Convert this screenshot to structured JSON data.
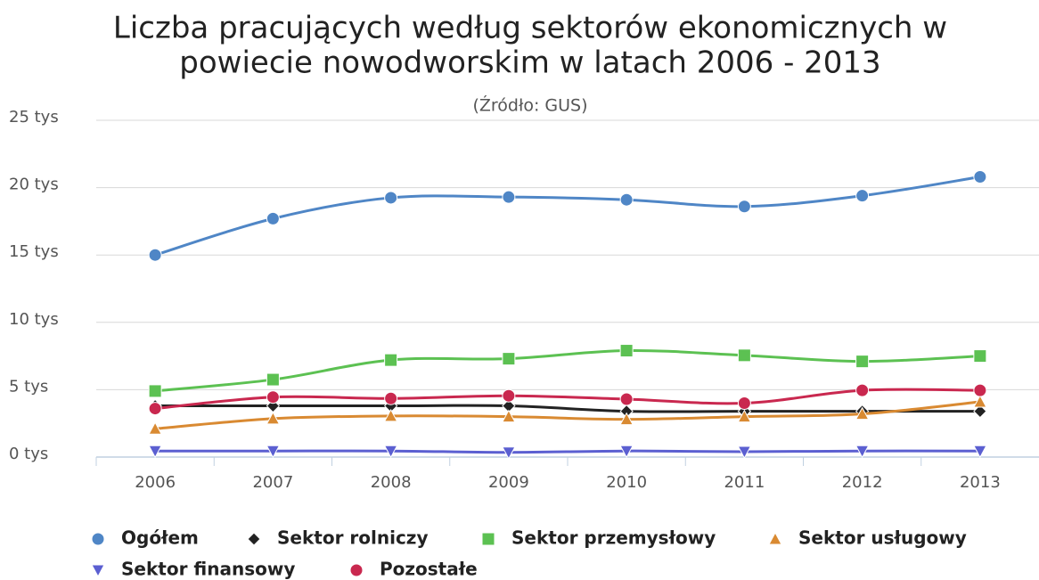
{
  "chart_data": {
    "type": "line",
    "title": [
      "Liczba pracujących według sektorów ekonomicznych w",
      "powiecie nowodworskim w latach 2006 - 2013"
    ],
    "subtitle": "(Źródło: GUS)",
    "categories": [
      "2006",
      "2007",
      "2008",
      "2009",
      "2010",
      "2011",
      "2012",
      "2013"
    ],
    "ylim": [
      0,
      25
    ],
    "yticks": [
      {
        "value": 0,
        "label": "0 tys"
      },
      {
        "value": 5,
        "label": "5 tys"
      },
      {
        "value": 10,
        "label": "10 tys"
      },
      {
        "value": 15,
        "label": "15 tys"
      },
      {
        "value": 20,
        "label": "20 tys"
      },
      {
        "value": 25,
        "label": "25 tys"
      }
    ],
    "grid": true,
    "legend": "bottom",
    "series": [
      {
        "name": "Ogółem",
        "color": "#4f86c6",
        "marker": "circle",
        "values": [
          15.0,
          17.7,
          19.25,
          19.3,
          19.1,
          18.6,
          19.4,
          20.8
        ]
      },
      {
        "name": "Sektor rolniczy",
        "color": "#222222",
        "marker": "diamond",
        "values": [
          3.8,
          3.8,
          3.8,
          3.8,
          3.4,
          3.4,
          3.4,
          3.4
        ]
      },
      {
        "name": "Sektor przemysłowy",
        "color": "#5cc152",
        "marker": "square",
        "values": [
          4.9,
          5.75,
          7.2,
          7.3,
          7.9,
          7.55,
          7.1,
          7.5
        ]
      },
      {
        "name": "Sektor usługowy",
        "color": "#d98a32",
        "marker": "triangle",
        "values": [
          2.1,
          2.85,
          3.05,
          3.0,
          2.8,
          3.0,
          3.2,
          4.1
        ]
      },
      {
        "name": "Sektor finansowy",
        "color": "#5b5fd1",
        "marker": "triangle-down",
        "values": [
          0.45,
          0.45,
          0.45,
          0.35,
          0.45,
          0.4,
          0.45,
          0.45
        ]
      },
      {
        "name": "Pozostałe",
        "color": "#c9284f",
        "marker": "circle",
        "values": [
          3.6,
          4.45,
          4.35,
          4.55,
          4.3,
          4.0,
          4.95,
          4.95
        ]
      }
    ]
  }
}
